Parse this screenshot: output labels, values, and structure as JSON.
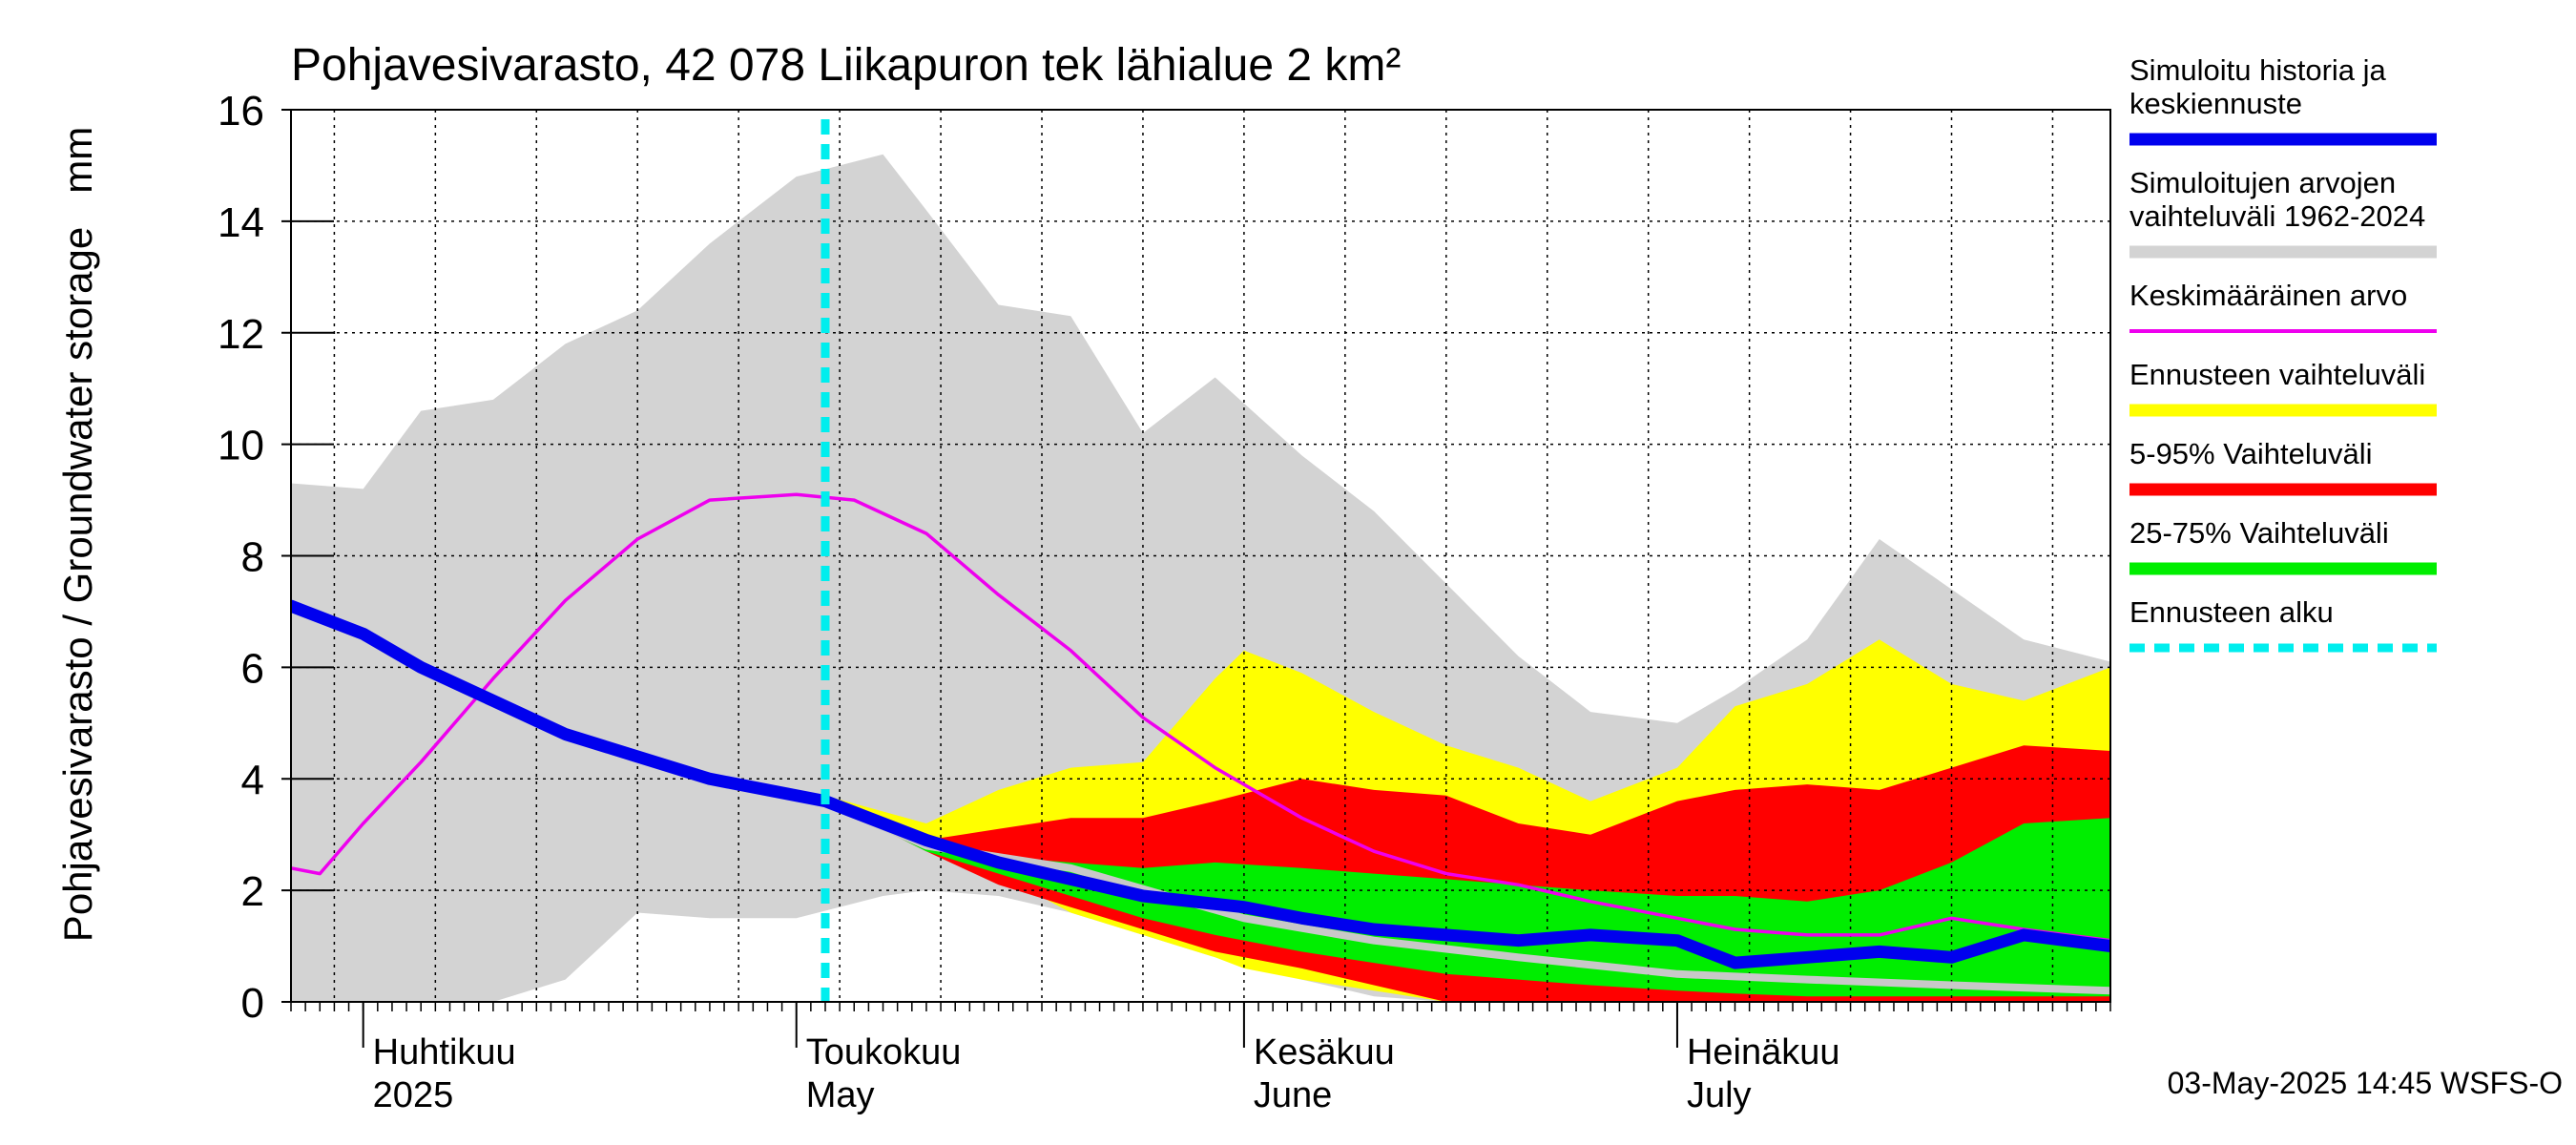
{
  "chart_data": {
    "type": "area",
    "title": "Pohjavesivarasto, 42 078 Liikapuron tek lähialue 2 km²",
    "ylabel": "Pohjavesivarasto / Groundwater storage   mm",
    "xlabel": "",
    "ylim": [
      0,
      16
    ],
    "yticks": [
      0,
      2,
      4,
      6,
      8,
      10,
      12,
      14,
      16
    ],
    "xlim": [
      "2025-03-27",
      "2025-07-31"
    ],
    "grid": true,
    "legend_placement": "right",
    "x_axis_labels": [
      {
        "date": "2025-04-01",
        "line1": "Huhtikuu",
        "line2": "2025"
      },
      {
        "date": "2025-05-01",
        "line1": "Toukokuu",
        "line2": "May"
      },
      {
        "date": "2025-06-01",
        "line1": "Kesäkuu",
        "line2": "June"
      },
      {
        "date": "2025-07-01",
        "line1": "Heinäkuu",
        "line2": "July"
      }
    ],
    "forecast_start": "2025-05-03",
    "timestamp": "03-May-2025 14:45 WSFS-O",
    "legend": [
      {
        "key": "history",
        "label_lines": [
          "Simuloitu historia ja",
          "keskiennuste"
        ],
        "color": "#0000ee",
        "style": "thick"
      },
      {
        "key": "range",
        "label_lines": [
          "Simuloitujen arvojen",
          "vaihteluväli 1962-2024"
        ],
        "color": "#d3d3d3",
        "style": "thick"
      },
      {
        "key": "mean",
        "label_lines": [
          "Keskimääräinen arvo"
        ],
        "color": "#ee00ee",
        "style": "thin"
      },
      {
        "key": "forecast_range",
        "label_lines": [
          "Ennusteen vaihteluväli"
        ],
        "color": "#ffff00",
        "style": "thick"
      },
      {
        "key": "p5_95",
        "label_lines": [
          "5-95% Vaihteluväli"
        ],
        "color": "#ff0000",
        "style": "thick"
      },
      {
        "key": "p25_75",
        "label_lines": [
          "25-75% Vaihteluväli"
        ],
        "color": "#00ee00",
        "style": "thick"
      },
      {
        "key": "forecast_start",
        "label_lines": [
          "Ennusteen alku"
        ],
        "color": "#00eeee",
        "style": "dashed"
      }
    ],
    "series": [
      {
        "key": "range",
        "name": "Simuloitujen arvojen vaihteluväli 1962-2024",
        "kind": "band",
        "color": "#d3d3d3",
        "x": [
          "2025-03-27",
          "2025-04-01",
          "2025-04-05",
          "2025-04-10",
          "2025-04-15",
          "2025-04-20",
          "2025-04-25",
          "2025-05-01",
          "2025-05-07",
          "2025-05-10",
          "2025-05-15",
          "2025-05-20",
          "2025-05-25",
          "2025-05-30",
          "2025-06-05",
          "2025-06-10",
          "2025-06-15",
          "2025-06-20",
          "2025-06-25",
          "2025-07-01",
          "2025-07-05",
          "2025-07-10",
          "2025-07-15",
          "2025-07-20",
          "2025-07-25",
          "2025-07-31"
        ],
        "upper": [
          9.3,
          9.2,
          10.6,
          10.8,
          11.8,
          12.4,
          13.6,
          14.8,
          15.2,
          14.2,
          12.5,
          12.3,
          10.2,
          11.2,
          9.8,
          8.8,
          7.5,
          6.2,
          5.2,
          5.0,
          5.6,
          6.5,
          8.3,
          7.4,
          6.5,
          6.1
        ],
        "lower": [
          0,
          0,
          0,
          0,
          0.4,
          1.6,
          1.5,
          1.5,
          1.9,
          2.0,
          1.9,
          1.6,
          1.2,
          0.8,
          0.4,
          0.1,
          0,
          0,
          0,
          0,
          0,
          0,
          0,
          0,
          0,
          0
        ]
      },
      {
        "key": "forecast_range",
        "name": "Ennusteen vaihteluväli",
        "kind": "band",
        "color": "#ffff00",
        "x": [
          "2025-05-03",
          "2025-05-10",
          "2025-05-15",
          "2025-05-20",
          "2025-05-25",
          "2025-05-30",
          "2025-06-01",
          "2025-06-05",
          "2025-06-10",
          "2025-06-15",
          "2025-06-20",
          "2025-06-25",
          "2025-07-01",
          "2025-07-05",
          "2025-07-10",
          "2025-07-15",
          "2025-07-20",
          "2025-07-25",
          "2025-07-31"
        ],
        "upper": [
          3.7,
          3.2,
          3.8,
          4.2,
          4.3,
          5.8,
          6.3,
          5.9,
          5.2,
          4.6,
          4.2,
          3.6,
          4.2,
          5.3,
          5.7,
          6.5,
          5.7,
          5.4,
          6.0
        ],
        "lower": [
          3.7,
          2.9,
          2.3,
          1.6,
          1.2,
          0.8,
          0.6,
          0.4,
          0.2,
          0,
          0,
          0,
          0,
          0,
          0,
          0,
          0,
          0,
          0
        ]
      },
      {
        "key": "p5_95",
        "name": "5-95% Vaihteluväli",
        "kind": "band",
        "color": "#ff0000",
        "x": [
          "2025-05-03",
          "2025-05-10",
          "2025-05-15",
          "2025-05-20",
          "2025-05-25",
          "2025-05-30",
          "2025-06-05",
          "2025-06-10",
          "2025-06-15",
          "2025-06-20",
          "2025-06-25",
          "2025-07-01",
          "2025-07-05",
          "2025-07-10",
          "2025-07-15",
          "2025-07-20",
          "2025-07-25",
          "2025-07-31"
        ],
        "upper": [
          3.6,
          2.9,
          3.1,
          3.3,
          3.3,
          3.6,
          4.0,
          3.8,
          3.7,
          3.2,
          3.0,
          3.6,
          3.8,
          3.9,
          3.8,
          4.2,
          4.6,
          4.5
        ],
        "lower": [
          3.6,
          2.7,
          2.1,
          1.7,
          1.3,
          0.9,
          0.6,
          0.3,
          0,
          0,
          0,
          0,
          0,
          0,
          0,
          0,
          0,
          0
        ]
      },
      {
        "key": "p25_75",
        "name": "25-75% Vaihteluväli",
        "kind": "band",
        "color": "#00ee00",
        "x": [
          "2025-05-03",
          "2025-05-10",
          "2025-05-15",
          "2025-05-20",
          "2025-05-25",
          "2025-05-30",
          "2025-06-05",
          "2025-06-10",
          "2025-06-15",
          "2025-06-20",
          "2025-06-25",
          "2025-07-01",
          "2025-07-05",
          "2025-07-10",
          "2025-07-15",
          "2025-07-20",
          "2025-07-25",
          "2025-07-31"
        ],
        "upper": [
          3.6,
          2.8,
          2.6,
          2.5,
          2.4,
          2.5,
          2.4,
          2.3,
          2.2,
          2.1,
          2.0,
          1.9,
          1.9,
          1.8,
          2.0,
          2.5,
          3.2,
          3.3
        ],
        "lower": [
          3.6,
          2.7,
          2.3,
          1.9,
          1.5,
          1.2,
          0.9,
          0.7,
          0.5,
          0.4,
          0.3,
          0.2,
          0.15,
          0.1,
          0.1,
          0.1,
          0.1,
          0.1
        ]
      },
      {
        "key": "median",
        "name": "",
        "kind": "line",
        "color": "#c8c8c8",
        "x": [
          "2025-05-03",
          "2025-05-10",
          "2025-05-20",
          "2025-06-01",
          "2025-06-10",
          "2025-06-20",
          "2025-07-01",
          "2025-07-10",
          "2025-07-20",
          "2025-07-31"
        ],
        "y": [
          3.6,
          2.8,
          2.4,
          1.5,
          1.1,
          0.8,
          0.5,
          0.4,
          0.3,
          0.2
        ]
      },
      {
        "key": "mean",
        "name": "Keskimääräinen arvo",
        "kind": "line",
        "color": "#ee00ee",
        "x": [
          "2025-03-27",
          "2025-03-29",
          "2025-04-01",
          "2025-04-05",
          "2025-04-10",
          "2025-04-15",
          "2025-04-20",
          "2025-04-25",
          "2025-05-01",
          "2025-05-05",
          "2025-05-10",
          "2025-05-15",
          "2025-05-20",
          "2025-05-25",
          "2025-05-30",
          "2025-06-05",
          "2025-06-10",
          "2025-06-15",
          "2025-06-20",
          "2025-06-25",
          "2025-07-01",
          "2025-07-05",
          "2025-07-10",
          "2025-07-15",
          "2025-07-20",
          "2025-07-25",
          "2025-07-31"
        ],
        "y": [
          2.4,
          2.3,
          3.2,
          4.3,
          5.8,
          7.2,
          8.3,
          9.0,
          9.1,
          9.0,
          8.4,
          7.3,
          6.3,
          5.1,
          4.2,
          3.3,
          2.7,
          2.3,
          2.1,
          1.8,
          1.5,
          1.3,
          1.2,
          1.2,
          1.5,
          1.3,
          1.1
        ]
      },
      {
        "key": "history",
        "name": "Simuloitu historia ja keskiennuste",
        "kind": "line",
        "color": "#0000ee",
        "x": [
          "2025-03-27",
          "2025-04-01",
          "2025-04-05",
          "2025-04-10",
          "2025-04-15",
          "2025-04-20",
          "2025-04-25",
          "2025-05-03",
          "2025-05-10",
          "2025-05-15",
          "2025-05-20",
          "2025-05-25",
          "2025-06-01",
          "2025-06-05",
          "2025-06-10",
          "2025-06-15",
          "2025-06-20",
          "2025-06-25",
          "2025-07-01",
          "2025-07-05",
          "2025-07-10",
          "2025-07-15",
          "2025-07-20",
          "2025-07-25",
          "2025-07-31"
        ],
        "y": [
          7.1,
          6.6,
          6.0,
          5.4,
          4.8,
          4.4,
          4.0,
          3.6,
          2.9,
          2.5,
          2.2,
          1.9,
          1.7,
          1.5,
          1.3,
          1.2,
          1.1,
          1.2,
          1.1,
          0.7,
          0.8,
          0.9,
          0.8,
          1.2,
          1.0
        ]
      }
    ]
  }
}
